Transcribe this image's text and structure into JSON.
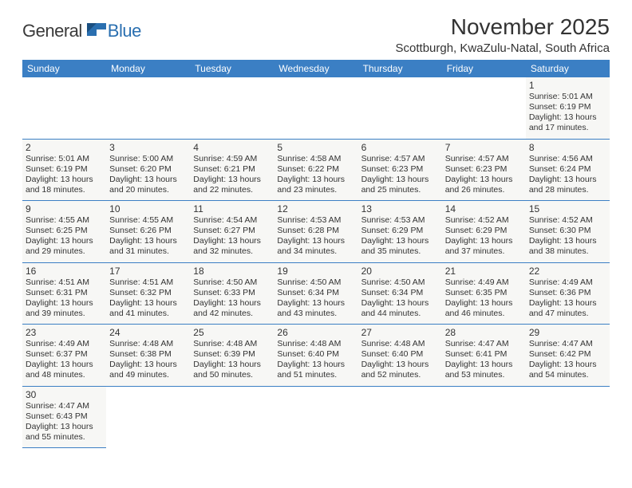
{
  "logo": {
    "text_dark": "General",
    "text_blue": "Blue"
  },
  "title": "November 2025",
  "location": "Scottburgh, KwaZulu-Natal, South Africa",
  "colors": {
    "header_bg": "#3b7fc4",
    "header_text": "#ffffff",
    "cell_bg": "#f7f7f5",
    "border": "#3b7fc4",
    "logo_blue": "#2a6fb0"
  },
  "weekdays": [
    "Sunday",
    "Monday",
    "Tuesday",
    "Wednesday",
    "Thursday",
    "Friday",
    "Saturday"
  ],
  "weeks": [
    [
      null,
      null,
      null,
      null,
      null,
      null,
      {
        "n": "1",
        "sr": "5:01 AM",
        "ss": "6:19 PM",
        "d1": "13 hours",
        "d2": "17 minutes."
      }
    ],
    [
      {
        "n": "2",
        "sr": "5:01 AM",
        "ss": "6:19 PM",
        "d1": "13 hours",
        "d2": "18 minutes."
      },
      {
        "n": "3",
        "sr": "5:00 AM",
        "ss": "6:20 PM",
        "d1": "13 hours",
        "d2": "20 minutes."
      },
      {
        "n": "4",
        "sr": "4:59 AM",
        "ss": "6:21 PM",
        "d1": "13 hours",
        "d2": "22 minutes."
      },
      {
        "n": "5",
        "sr": "4:58 AM",
        "ss": "6:22 PM",
        "d1": "13 hours",
        "d2": "23 minutes."
      },
      {
        "n": "6",
        "sr": "4:57 AM",
        "ss": "6:23 PM",
        "d1": "13 hours",
        "d2": "25 minutes."
      },
      {
        "n": "7",
        "sr": "4:57 AM",
        "ss": "6:23 PM",
        "d1": "13 hours",
        "d2": "26 minutes."
      },
      {
        "n": "8",
        "sr": "4:56 AM",
        "ss": "6:24 PM",
        "d1": "13 hours",
        "d2": "28 minutes."
      }
    ],
    [
      {
        "n": "9",
        "sr": "4:55 AM",
        "ss": "6:25 PM",
        "d1": "13 hours",
        "d2": "29 minutes."
      },
      {
        "n": "10",
        "sr": "4:55 AM",
        "ss": "6:26 PM",
        "d1": "13 hours",
        "d2": "31 minutes."
      },
      {
        "n": "11",
        "sr": "4:54 AM",
        "ss": "6:27 PM",
        "d1": "13 hours",
        "d2": "32 minutes."
      },
      {
        "n": "12",
        "sr": "4:53 AM",
        "ss": "6:28 PM",
        "d1": "13 hours",
        "d2": "34 minutes."
      },
      {
        "n": "13",
        "sr": "4:53 AM",
        "ss": "6:29 PM",
        "d1": "13 hours",
        "d2": "35 minutes."
      },
      {
        "n": "14",
        "sr": "4:52 AM",
        "ss": "6:29 PM",
        "d1": "13 hours",
        "d2": "37 minutes."
      },
      {
        "n": "15",
        "sr": "4:52 AM",
        "ss": "6:30 PM",
        "d1": "13 hours",
        "d2": "38 minutes."
      }
    ],
    [
      {
        "n": "16",
        "sr": "4:51 AM",
        "ss": "6:31 PM",
        "d1": "13 hours",
        "d2": "39 minutes."
      },
      {
        "n": "17",
        "sr": "4:51 AM",
        "ss": "6:32 PM",
        "d1": "13 hours",
        "d2": "41 minutes."
      },
      {
        "n": "18",
        "sr": "4:50 AM",
        "ss": "6:33 PM",
        "d1": "13 hours",
        "d2": "42 minutes."
      },
      {
        "n": "19",
        "sr": "4:50 AM",
        "ss": "6:34 PM",
        "d1": "13 hours",
        "d2": "43 minutes."
      },
      {
        "n": "20",
        "sr": "4:50 AM",
        "ss": "6:34 PM",
        "d1": "13 hours",
        "d2": "44 minutes."
      },
      {
        "n": "21",
        "sr": "4:49 AM",
        "ss": "6:35 PM",
        "d1": "13 hours",
        "d2": "46 minutes."
      },
      {
        "n": "22",
        "sr": "4:49 AM",
        "ss": "6:36 PM",
        "d1": "13 hours",
        "d2": "47 minutes."
      }
    ],
    [
      {
        "n": "23",
        "sr": "4:49 AM",
        "ss": "6:37 PM",
        "d1": "13 hours",
        "d2": "48 minutes."
      },
      {
        "n": "24",
        "sr": "4:48 AM",
        "ss": "6:38 PM",
        "d1": "13 hours",
        "d2": "49 minutes."
      },
      {
        "n": "25",
        "sr": "4:48 AM",
        "ss": "6:39 PM",
        "d1": "13 hours",
        "d2": "50 minutes."
      },
      {
        "n": "26",
        "sr": "4:48 AM",
        "ss": "6:40 PM",
        "d1": "13 hours",
        "d2": "51 minutes."
      },
      {
        "n": "27",
        "sr": "4:48 AM",
        "ss": "6:40 PM",
        "d1": "13 hours",
        "d2": "52 minutes."
      },
      {
        "n": "28",
        "sr": "4:47 AM",
        "ss": "6:41 PM",
        "d1": "13 hours",
        "d2": "53 minutes."
      },
      {
        "n": "29",
        "sr": "4:47 AM",
        "ss": "6:42 PM",
        "d1": "13 hours",
        "d2": "54 minutes."
      }
    ],
    [
      {
        "n": "30",
        "sr": "4:47 AM",
        "ss": "6:43 PM",
        "d1": "13 hours",
        "d2": "55 minutes."
      },
      null,
      null,
      null,
      null,
      null,
      null
    ]
  ],
  "labels": {
    "sunrise": "Sunrise:",
    "sunset": "Sunset:",
    "daylight": "Daylight:",
    "and": "and"
  }
}
